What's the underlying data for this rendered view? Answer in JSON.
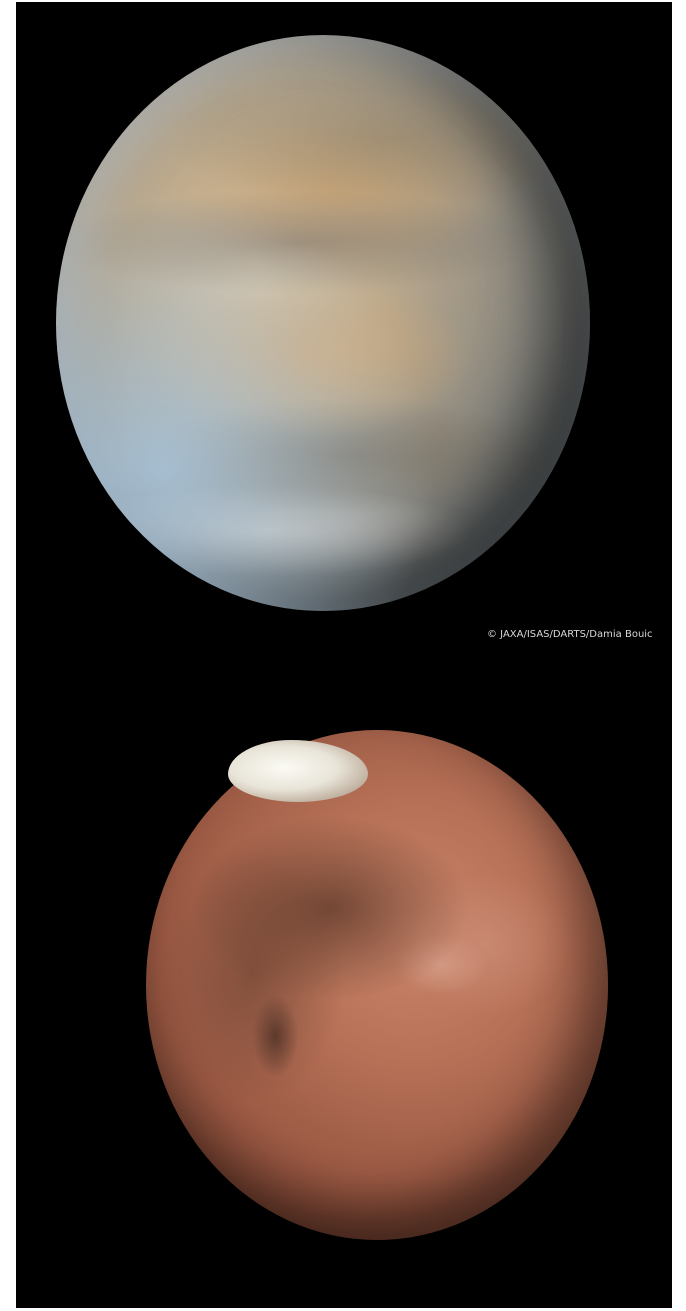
{
  "photo": {
    "subjects": [
      "venus",
      "mars"
    ],
    "credit": "© JAXA/ISAS/DARTS/Damia Bouic"
  }
}
